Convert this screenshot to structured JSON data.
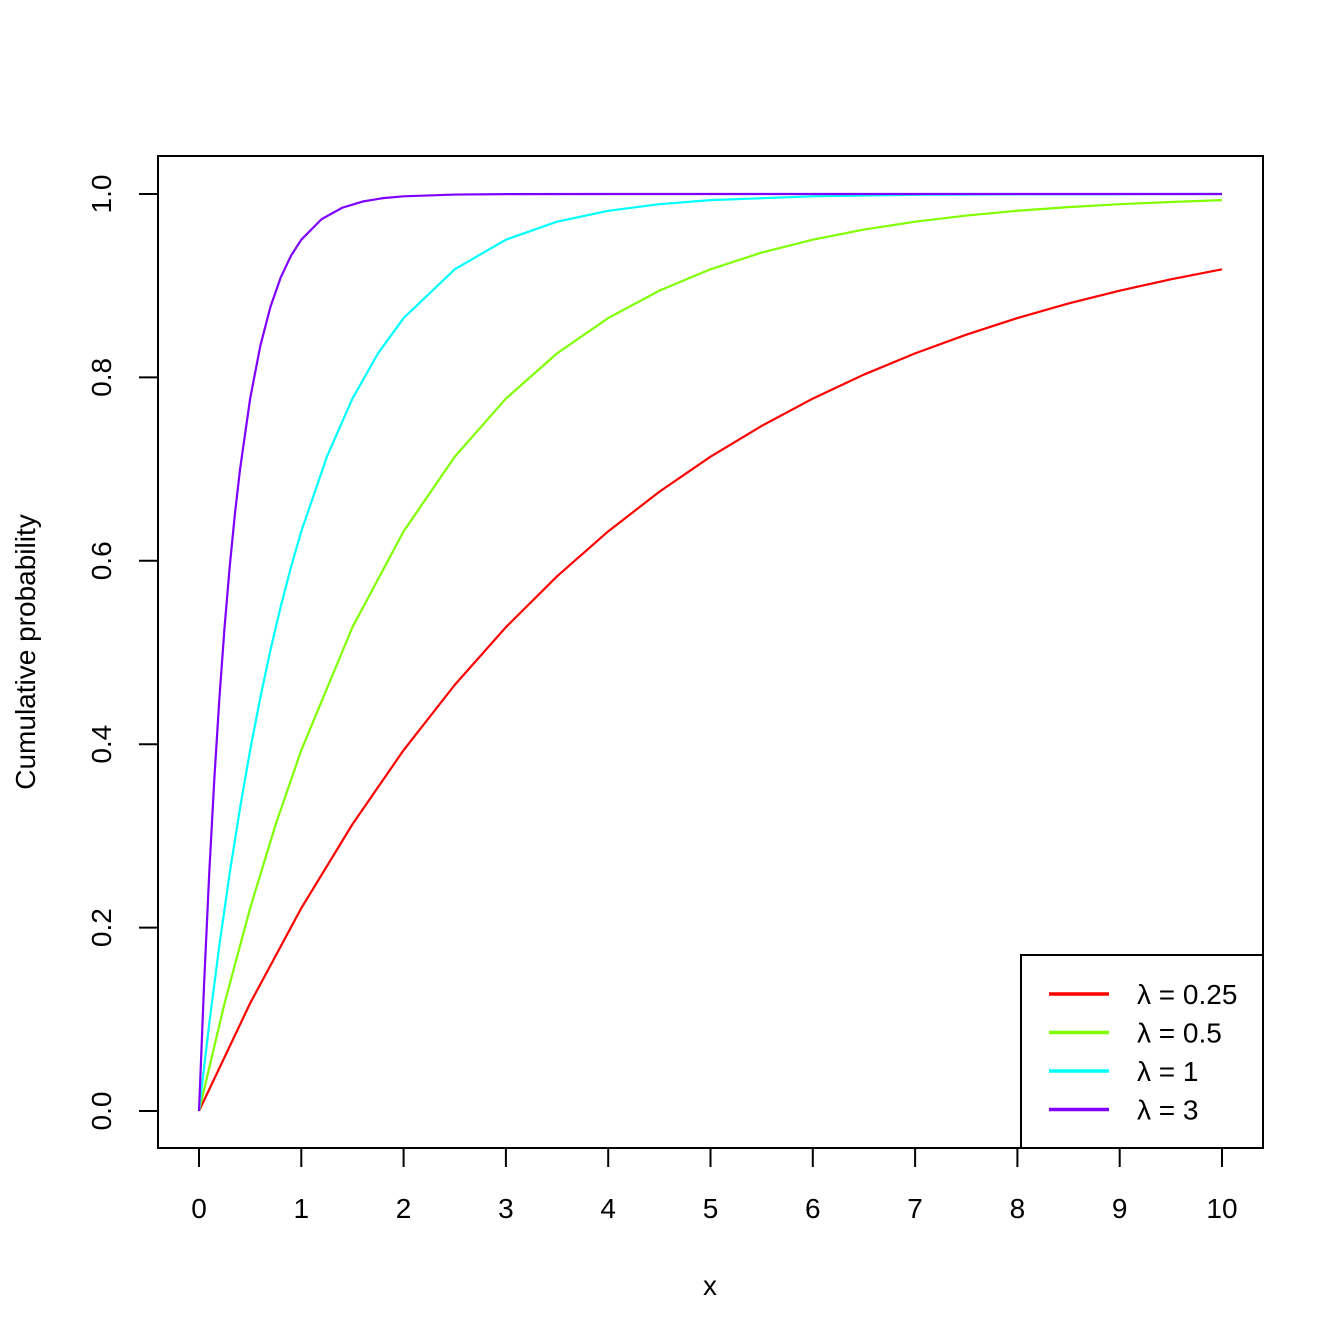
{
  "chart_data": {
    "type": "line",
    "xlabel": "x",
    "ylabel": "Cumulative probability",
    "xlim": [
      0,
      10
    ],
    "ylim": [
      0,
      1
    ],
    "x_ticks": [
      0,
      1,
      2,
      3,
      4,
      5,
      6,
      7,
      8,
      9,
      10
    ],
    "x_tick_labels": [
      "0",
      "1",
      "2",
      "3",
      "4",
      "5",
      "6",
      "7",
      "8",
      "9",
      "10"
    ],
    "y_ticks": [
      0,
      0.2,
      0.4,
      0.6,
      0.8,
      1.0
    ],
    "y_tick_labels": [
      "0.0",
      "0.2",
      "0.4",
      "0.6",
      "0.8",
      "1.0"
    ],
    "grid": false,
    "legend": {
      "placement": "bottom-right",
      "entries": [
        "λ = 0.25",
        "λ = 0.5",
        "λ = 1",
        "λ = 3"
      ]
    },
    "series": [
      {
        "name": "λ = 0.25",
        "color": "#ff0000",
        "x": [
          0,
          0.5,
          1,
          1.5,
          2,
          2.5,
          3,
          3.5,
          4,
          4.5,
          5,
          5.5,
          6,
          6.5,
          7,
          7.5,
          8,
          8.5,
          9,
          9.5,
          10
        ],
        "y": [
          0,
          0.1175,
          0.2212,
          0.3127,
          0.3935,
          0.4647,
          0.5276,
          0.5831,
          0.6321,
          0.6753,
          0.7135,
          0.7471,
          0.7769,
          0.8031,
          0.8262,
          0.8466,
          0.8647,
          0.8806,
          0.8946,
          0.907,
          0.9179
        ]
      },
      {
        "name": "λ = 0.5",
        "color": "#80ff00",
        "x": [
          0,
          0.25,
          0.5,
          0.75,
          1,
          1.5,
          2,
          2.5,
          3,
          3.5,
          4,
          4.5,
          5,
          5.5,
          6,
          6.5,
          7,
          7.5,
          8,
          8.5,
          9,
          9.5,
          10
        ],
        "y": [
          0,
          0.1175,
          0.2212,
          0.3127,
          0.3935,
          0.5276,
          0.6321,
          0.7135,
          0.7769,
          0.8262,
          0.8647,
          0.8946,
          0.9179,
          0.9361,
          0.9502,
          0.9612,
          0.9698,
          0.9765,
          0.9817,
          0.9857,
          0.9889,
          0.9913,
          0.9933
        ]
      },
      {
        "name": "λ = 1",
        "color": "#00ffff",
        "x": [
          0,
          0.1,
          0.2,
          0.3,
          0.4,
          0.5,
          0.6,
          0.7,
          0.8,
          0.9,
          1,
          1.25,
          1.5,
          1.75,
          2,
          2.5,
          3,
          3.5,
          4,
          4.5,
          5,
          6,
          7,
          8,
          9,
          10
        ],
        "y": [
          0,
          0.0952,
          0.1813,
          0.2592,
          0.3297,
          0.3935,
          0.4512,
          0.5034,
          0.5507,
          0.5934,
          0.6321,
          0.7135,
          0.7769,
          0.8262,
          0.8647,
          0.9179,
          0.9502,
          0.9698,
          0.9817,
          0.9889,
          0.9933,
          0.9975,
          0.9991,
          0.9997,
          0.9999,
          1.0
        ]
      },
      {
        "name": "λ = 3",
        "color": "#8000ff",
        "x": [
          0,
          0.05,
          0.1,
          0.15,
          0.2,
          0.25,
          0.3,
          0.35,
          0.4,
          0.5,
          0.6,
          0.7,
          0.8,
          0.9,
          1,
          1.2,
          1.4,
          1.6,
          1.8,
          2,
          2.5,
          3,
          4,
          5,
          6,
          7,
          8,
          9,
          10
        ],
        "y": [
          0,
          0.1393,
          0.2592,
          0.3624,
          0.4512,
          0.5276,
          0.5934,
          0.6501,
          0.6988,
          0.7769,
          0.8347,
          0.8775,
          0.9093,
          0.9328,
          0.9502,
          0.9727,
          0.985,
          0.9918,
          0.9955,
          0.9975,
          0.9994,
          0.9999,
          1.0,
          1.0,
          1.0,
          1.0,
          1.0,
          1.0,
          1.0
        ]
      }
    ]
  }
}
